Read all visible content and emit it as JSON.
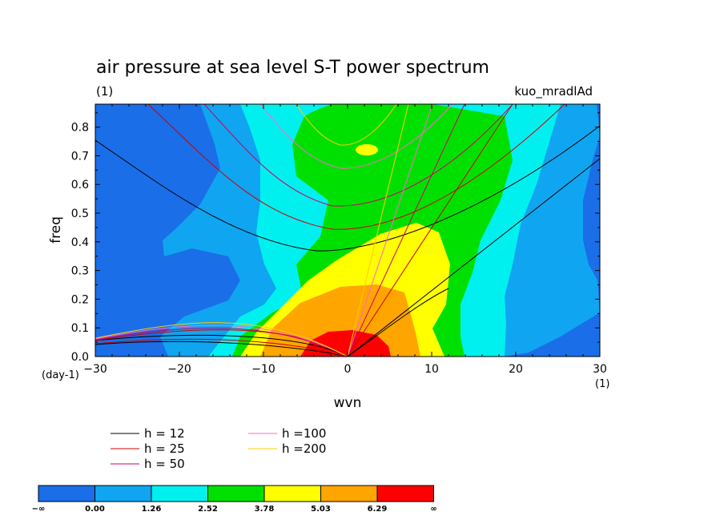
{
  "chart_data": {
    "type": "heatmap",
    "title": "air pressure at sea level S-T power spectrum",
    "subtitle_left": "(1)",
    "subtitle_right": "kuo_mradlAd",
    "xlabel": "wvn",
    "ylabel": "freq",
    "x_unit": "(1)",
    "y_unit": "(day-1)",
    "xlim": [
      -30,
      30
    ],
    "ylim": [
      0,
      0.88
    ],
    "xticks": [
      -30,
      -20,
      -10,
      0,
      10,
      20,
      30
    ],
    "yticks": [
      0.0,
      0.1,
      0.2,
      0.3,
      0.4,
      0.5,
      0.6,
      0.7,
      0.8
    ],
    "ytick_labels": [
      "0.0",
      "0.1",
      "0.2",
      "0.3",
      "0.4",
      "0.5",
      "0.6",
      "0.7",
      "0.8"
    ],
    "xtick_labels": [
      "−30",
      "−20",
      "−10",
      "0",
      "10",
      "20",
      "30"
    ],
    "contour_levels": [
      "−∞",
      "0.00",
      "1.26",
      "2.52",
      "3.78",
      "5.03",
      "6.29",
      "∞"
    ],
    "colors": [
      "#1a6ee8",
      "#10a5f0",
      "#00f0f0",
      "#00e000",
      "#ffff00",
      "#ffa500",
      "#ff0000"
    ],
    "dispersion_curves": [
      {
        "name": "h = 12",
        "color": "#000000"
      },
      {
        "name": "h = 25",
        "color": "#cc0000"
      },
      {
        "name": "h = 50",
        "color": "#cc0066"
      },
      {
        "name": "h =100",
        "color": "#ff66cc"
      },
      {
        "name": "h =200",
        "color": "#ffcc00"
      }
    ]
  }
}
